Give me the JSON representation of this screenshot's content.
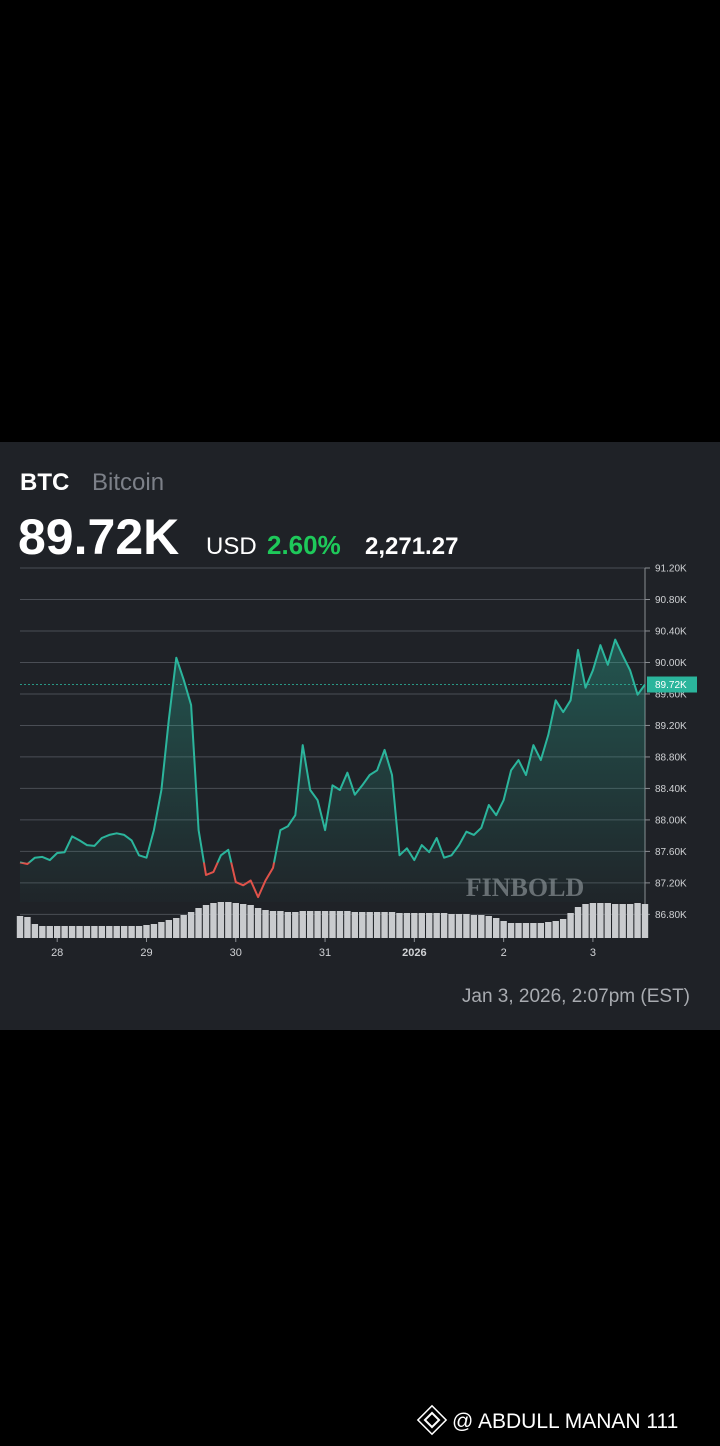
{
  "header": {
    "symbol": "BTC",
    "name": "Bitcoin",
    "price": "89.72K",
    "currency": "USD",
    "change_percent": "2.60%",
    "change_value": "2,271.27"
  },
  "chart_data": {
    "type": "line",
    "series": [
      {
        "name": "BTC",
        "color": "#2bb59c",
        "down_color": "#e0524a",
        "values": [
          87.46,
          87.44,
          87.52,
          87.53,
          87.49,
          87.58,
          87.59,
          87.79,
          87.74,
          87.68,
          87.67,
          87.77,
          87.81,
          87.83,
          87.81,
          87.74,
          87.55,
          87.52,
          87.87,
          88.38,
          89.27,
          90.06,
          89.78,
          89.46,
          87.87,
          87.3,
          87.34,
          87.55,
          87.62,
          87.21,
          87.17,
          87.23,
          87.02,
          87.23,
          87.39,
          87.87,
          87.92,
          88.06,
          88.95,
          88.38,
          88.25,
          87.87,
          88.44,
          88.38,
          88.6,
          88.32,
          88.44,
          88.57,
          88.63,
          88.89,
          88.57,
          87.55,
          87.64,
          87.49,
          87.68,
          87.59,
          87.77,
          87.52,
          87.55,
          87.68,
          87.85,
          87.81,
          87.9,
          88.19,
          88.06,
          88.25,
          88.63,
          88.76,
          88.57,
          88.95,
          88.76,
          89.08,
          89.52,
          89.37,
          89.52,
          90.16,
          89.68,
          89.9,
          90.22,
          89.97,
          90.29,
          90.09,
          89.9,
          89.59,
          89.72
        ]
      }
    ],
    "volume": {
      "color": "#c9cbce",
      "values": [
        22,
        21,
        14,
        12,
        12,
        12,
        12,
        12,
        12,
        12,
        12,
        12,
        12,
        12,
        12,
        12,
        12,
        13,
        14,
        16,
        18,
        20,
        23,
        26,
        30,
        33,
        35,
        36,
        36,
        35,
        34,
        33,
        30,
        28,
        27,
        27,
        26,
        26,
        27,
        27,
        27,
        27,
        27,
        27,
        27,
        26,
        26,
        26,
        26,
        26,
        26,
        25,
        25,
        25,
        25,
        25,
        25,
        25,
        24,
        24,
        24,
        23,
        23,
        22,
        20,
        17,
        15,
        15,
        15,
        15,
        15,
        16,
        17,
        19,
        25,
        31,
        34,
        35,
        35,
        35,
        34,
        34,
        34,
        35,
        34
      ]
    },
    "xlim": [
      0,
      84
    ],
    "xticks": [
      {
        "value": 5,
        "label": "28"
      },
      {
        "value": 17,
        "label": "29"
      },
      {
        "value": 29,
        "label": "30"
      },
      {
        "value": 41,
        "label": "31"
      },
      {
        "value": 53,
        "label": "2026"
      },
      {
        "value": 65,
        "label": "2"
      },
      {
        "value": 77,
        "label": "3"
      }
    ],
    "ylim": [
      86.5,
      91.2
    ],
    "yticks": [
      {
        "value": 91.2,
        "label": "91.20K"
      },
      {
        "value": 90.8,
        "label": "90.80K"
      },
      {
        "value": 90.4,
        "label": "90.40K"
      },
      {
        "value": 90.0,
        "label": "90.00K"
      },
      {
        "value": 89.6,
        "label": "89.60K"
      },
      {
        "value": 89.2,
        "label": "89.20K"
      },
      {
        "value": 88.8,
        "label": "88.80K"
      },
      {
        "value": 88.4,
        "label": "88.40K"
      },
      {
        "value": 88.0,
        "label": "88.00K"
      },
      {
        "value": 87.6,
        "label": "87.60K"
      },
      {
        "value": 87.2,
        "label": "87.20K"
      },
      {
        "value": 86.8,
        "label": "86.80K"
      }
    ],
    "last_price": {
      "value": 89.72,
      "label": "89.72K"
    },
    "grid": true,
    "watermark": "FINBOLD"
  },
  "timestamp": "Jan 3, 2026, 2:07pm (EST)",
  "footer": {
    "credit": "@ ABDULL MANAN 111"
  }
}
